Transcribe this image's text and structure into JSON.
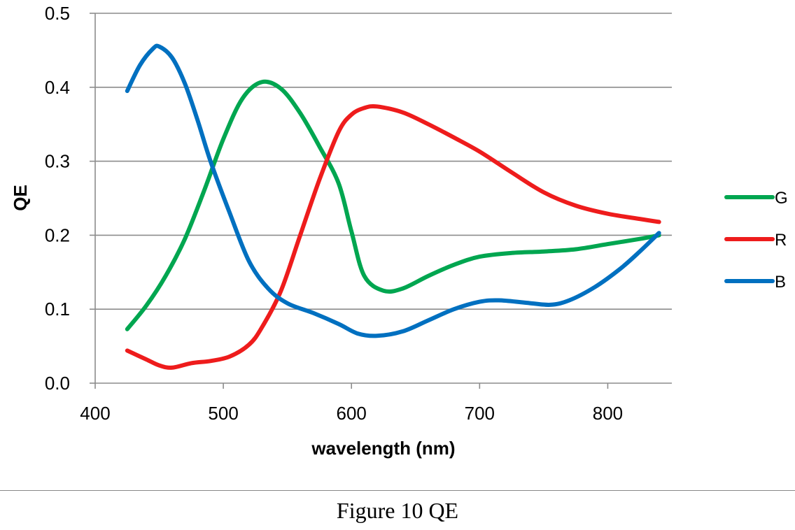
{
  "chart_data": {
    "type": "line",
    "title": "",
    "xlabel": "wavelength (nm)",
    "ylabel": "QE",
    "xlim": [
      400,
      850
    ],
    "ylim": [
      0,
      0.5
    ],
    "xticks": [
      400,
      500,
      600,
      700,
      800
    ],
    "yticks": [
      0.0,
      0.1,
      0.2,
      0.3,
      0.4,
      0.5
    ],
    "ytick_labels": [
      "0.0",
      "0.1",
      "0.2",
      "0.3",
      "0.4",
      "0.5"
    ],
    "grid": "horizontal",
    "legend_position": "right",
    "series": [
      {
        "name": "G",
        "color": "#00a650",
        "x": [
          425,
          440,
          455,
          470,
          485,
          500,
          515,
          530,
          545,
          560,
          575,
          590,
          600,
          610,
          625,
          640,
          660,
          680,
          700,
          725,
          750,
          775,
          800,
          825,
          840
        ],
        "y": [
          0.073,
          0.105,
          0.145,
          0.195,
          0.26,
          0.33,
          0.385,
          0.407,
          0.398,
          0.365,
          0.32,
          0.27,
          0.205,
          0.145,
          0.125,
          0.128,
          0.145,
          0.16,
          0.171,
          0.176,
          0.178,
          0.181,
          0.188,
          0.195,
          0.2
        ]
      },
      {
        "name": "R",
        "color": "#ee1c1c",
        "x": [
          425,
          440,
          450,
          460,
          475,
          490,
          505,
          520,
          530,
          545,
          560,
          575,
          590,
          600,
          610,
          620,
          640,
          660,
          680,
          700,
          725,
          750,
          775,
          800,
          825,
          840
        ],
        "y": [
          0.044,
          0.032,
          0.024,
          0.021,
          0.027,
          0.03,
          0.036,
          0.052,
          0.075,
          0.125,
          0.2,
          0.275,
          0.34,
          0.363,
          0.372,
          0.374,
          0.366,
          0.35,
          0.332,
          0.313,
          0.285,
          0.258,
          0.24,
          0.229,
          0.222,
          0.218
        ]
      },
      {
        "name": "B",
        "color": "#0070c0",
        "x": [
          425,
          435,
          445,
          450,
          460,
          470,
          480,
          490,
          505,
          520,
          535,
          550,
          570,
          590,
          605,
          620,
          640,
          660,
          680,
          700,
          715,
          735,
          755,
          770,
          790,
          810,
          825,
          840
        ],
        "y": [
          0.395,
          0.43,
          0.452,
          0.455,
          0.44,
          0.405,
          0.355,
          0.3,
          0.23,
          0.165,
          0.128,
          0.108,
          0.095,
          0.08,
          0.067,
          0.064,
          0.07,
          0.085,
          0.1,
          0.11,
          0.112,
          0.109,
          0.106,
          0.112,
          0.13,
          0.155,
          0.178,
          0.203
        ]
      }
    ]
  },
  "caption": "Figure 10 QE"
}
